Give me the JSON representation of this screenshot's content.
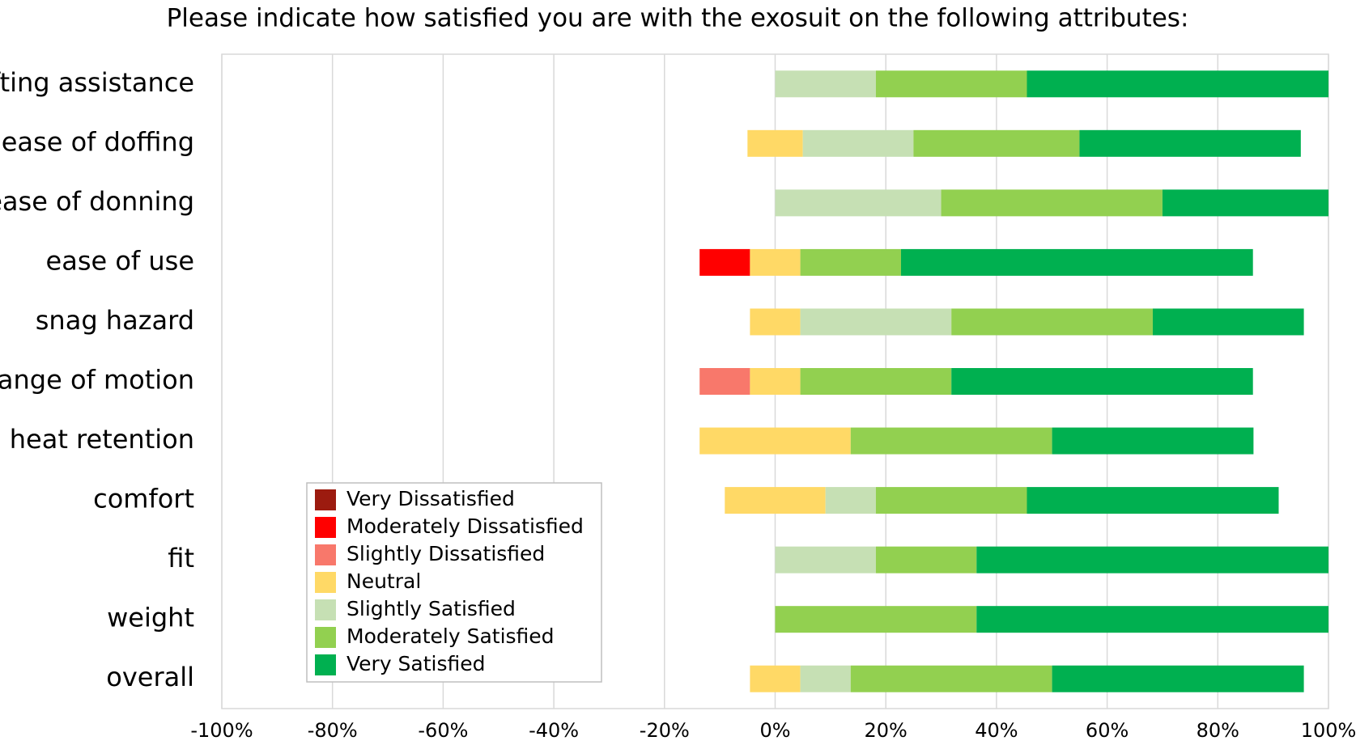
{
  "chart_data": {
    "type": "diverging_stacked_bar",
    "title": "Please indicate how satisfied you are with the exosuit on the following attributes:",
    "categories": [
      "lifting assistance",
      "ease of doffing",
      "ease of donning",
      "ease of use",
      "snag hazard",
      "range of motion",
      "heat retention",
      "comfort",
      "fit",
      "weight",
      "overall"
    ],
    "neutral_series": 3,
    "series": [
      {
        "name": "Very Dissatisfied",
        "color": "#9c1b0f",
        "values": [
          0,
          0,
          0,
          0,
          0,
          0,
          0,
          0,
          0,
          0,
          0
        ]
      },
      {
        "name": "Moderately Dissatisfied",
        "color": "#ff0000",
        "values": [
          0,
          0,
          0,
          9.1,
          0,
          0,
          0,
          0,
          0,
          0,
          0
        ]
      },
      {
        "name": "Slightly Dissatisfied",
        "color": "#f8786b",
        "values": [
          0,
          0,
          0,
          0,
          0,
          9.1,
          0,
          0,
          0,
          0,
          0
        ]
      },
      {
        "name": "Neutral",
        "color": "#ffd966",
        "values": [
          0,
          10,
          0,
          9.1,
          9.1,
          9.1,
          27.3,
          18.2,
          0,
          0,
          9.1
        ]
      },
      {
        "name": "Slightly Satisfied",
        "color": "#c6e0b4",
        "values": [
          18.2,
          20,
          30,
          0,
          27.3,
          0,
          0,
          9.1,
          18.2,
          0,
          9.1
        ]
      },
      {
        "name": "Moderately Satisfied",
        "color": "#92d050",
        "values": [
          27.3,
          30,
          40,
          18.2,
          36.4,
          27.3,
          36.4,
          27.3,
          18.2,
          36.4,
          36.4
        ]
      },
      {
        "name": "Very Satisfied",
        "color": "#00b050",
        "values": [
          54.5,
          40,
          30,
          63.6,
          27.3,
          54.5,
          36.4,
          45.5,
          63.6,
          63.6,
          45.5
        ]
      }
    ],
    "xlim": [
      -100,
      100
    ],
    "xticks": [
      {
        "value": -100,
        "label": "-100%"
      },
      {
        "value": -80,
        "label": "-80%"
      },
      {
        "value": -60,
        "label": "-60%"
      },
      {
        "value": -40,
        "label": "-40%"
      },
      {
        "value": -20,
        "label": "-20%"
      },
      {
        "value": 0,
        "label": "0%"
      },
      {
        "value": 20,
        "label": "20%"
      },
      {
        "value": 40,
        "label": "40%"
      },
      {
        "value": 60,
        "label": "60%"
      },
      {
        "value": 80,
        "label": "80%"
      },
      {
        "value": 100,
        "label": "100%"
      }
    ],
    "grid": true,
    "legend": "lower left"
  }
}
